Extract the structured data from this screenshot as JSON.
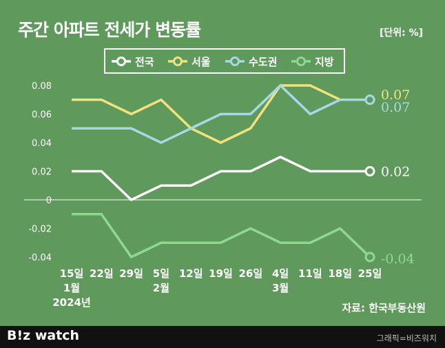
{
  "header": {
    "title": "주간 아파트 전세가 변동률",
    "unit": "[단위: %]"
  },
  "source": "자료: 한국부동산원",
  "footer": {
    "brand": "B!z watch",
    "credit": "그래픽=비즈워치"
  },
  "colors": {
    "background": "#5f9a5c",
    "national": "#ffffff",
    "seoul": "#f2e27d",
    "capital": "#a9d7e8",
    "regional": "#8fd98f"
  },
  "chart_data": {
    "type": "line",
    "x_tick_labels": [
      [
        "15일",
        "1월",
        "2024년"
      ],
      [
        "22일"
      ],
      [
        "29일"
      ],
      [
        "5일",
        "2월"
      ],
      [
        "12일"
      ],
      [
        "19일"
      ],
      [
        "26일"
      ],
      [
        "4일",
        "3월"
      ],
      [
        "11일"
      ],
      [
        "18일"
      ],
      [
        "25일"
      ]
    ],
    "y_ticks": [
      "0.08",
      "0.06",
      "0.04",
      "0.02",
      "0",
      "-0.02",
      "-0.04"
    ],
    "ylim": [
      -0.04,
      0.08
    ],
    "series": [
      {
        "name": "전국",
        "color": "#ffffff",
        "values": [
          0.02,
          0.02,
          0.0,
          0.01,
          0.01,
          0.02,
          0.02,
          0.03,
          0.02,
          0.02,
          0.02
        ],
        "end_label": "0.02"
      },
      {
        "name": "서울",
        "color": "#f2e27d",
        "values": [
          0.07,
          0.07,
          0.06,
          0.07,
          0.05,
          0.04,
          0.05,
          0.08,
          0.08,
          0.07,
          0.07
        ],
        "end_label": "0.07"
      },
      {
        "name": "수도권",
        "color": "#a9d7e8",
        "values": [
          0.05,
          0.05,
          0.05,
          0.04,
          0.05,
          0.06,
          0.06,
          0.08,
          0.06,
          0.07,
          0.07
        ],
        "end_label": "0.07"
      },
      {
        "name": "지방",
        "color": "#8fd98f",
        "values": [
          -0.01,
          -0.01,
          -0.04,
          -0.03,
          -0.03,
          -0.03,
          -0.02,
          -0.03,
          -0.03,
          -0.02,
          -0.04
        ],
        "end_label": "-0.04"
      }
    ],
    "legend": "top-center",
    "grid": false
  }
}
